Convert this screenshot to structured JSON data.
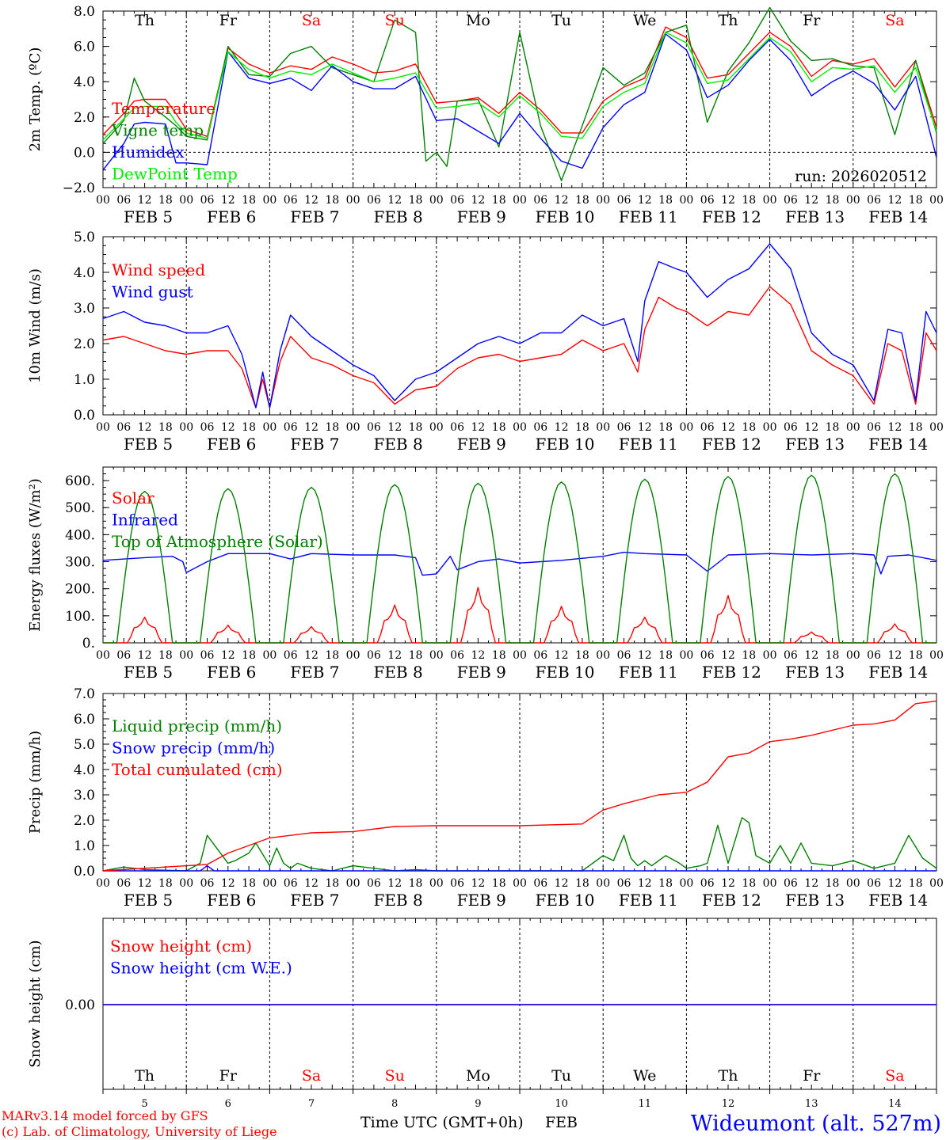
{
  "meta": {
    "run_label": "run: 2026020512",
    "credit_line1": "MARv3.14 model forced by GFS",
    "credit_line2": "(c) Lab. of Climatology, University of Liege",
    "xlabel": "Time UTC (GMT+0h)",
    "month_label": "FEB",
    "station": "Wideumont (alt. 527m)",
    "colors": {
      "red": "#ff0000",
      "green": "#008000",
      "blue": "#0000ff",
      "lime": "#00ee00",
      "grid": "#000000",
      "weekend": "#ff0000"
    }
  },
  "time_axis": {
    "days": [
      {
        "abbr": "Th",
        "date": "FEB  5",
        "num": "5",
        "weekend": false
      },
      {
        "abbr": "Fr",
        "date": "FEB  6",
        "num": "6",
        "weekend": false
      },
      {
        "abbr": "Sa",
        "date": "FEB  7",
        "num": "7",
        "weekend": true
      },
      {
        "abbr": "Su",
        "date": "FEB  8",
        "num": "8",
        "weekend": true
      },
      {
        "abbr": "Mo",
        "date": "FEB  9",
        "num": "9",
        "weekend": false
      },
      {
        "abbr": "Tu",
        "date": "FEB 10",
        "num": "10",
        "weekend": false
      },
      {
        "abbr": "We",
        "date": "FEB 11",
        "num": "11",
        "weekend": false
      },
      {
        "abbr": "Th",
        "date": "FEB 12",
        "num": "12",
        "weekend": false
      },
      {
        "abbr": "Fr",
        "date": "FEB 13",
        "num": "13",
        "weekend": false
      },
      {
        "abbr": "Sa",
        "date": "FEB 14",
        "num": "14",
        "weekend": true
      }
    ],
    "hour_ticks": [
      "00",
      "06",
      "12",
      "18"
    ],
    "end_tick": "00"
  },
  "chart_data": [
    {
      "id": "temp",
      "type": "line",
      "ylabel": "2m Temp. (ºC)",
      "ylim": [
        -2,
        8
      ],
      "yticks": [
        -2,
        0,
        2,
        4,
        6,
        8
      ],
      "ytick_labels": [
        "−2.0",
        "0.0",
        "2.0",
        "4.0",
        "6.0",
        "8.0"
      ],
      "zero_line": 0,
      "x_unit": "hours since Feb 5 00 UTC",
      "series": [
        {
          "name": "Temperature",
          "color": "#ff0000",
          "x": [
            0,
            6,
            9,
            12,
            18,
            21,
            24,
            30,
            36,
            42,
            48,
            54,
            60,
            66,
            72,
            78,
            84,
            90,
            96,
            102,
            108,
            114,
            120,
            126,
            132,
            138,
            144,
            150,
            156,
            162,
            168,
            174,
            180,
            186,
            192,
            198,
            204,
            210,
            216,
            222,
            228,
            234,
            240
          ],
          "values": [
            1.0,
            2.2,
            2.9,
            3.0,
            3.0,
            2.2,
            1.3,
            0.9,
            5.9,
            5.0,
            4.5,
            4.9,
            4.7,
            5.4,
            5.0,
            4.5,
            4.6,
            5.0,
            2.8,
            2.9,
            3.1,
            2.2,
            3.4,
            2.4,
            1.1,
            1.1,
            2.9,
            3.7,
            4.2,
            7.1,
            6.5,
            4.2,
            4.4,
            5.6,
            6.8,
            6.0,
            4.3,
            5.2,
            5.0,
            5.3,
            3.7,
            5.2,
            1.4
          ]
        },
        {
          "name": "Vigne temp",
          "color": "#008000",
          "x": [
            0,
            6,
            9,
            12,
            18,
            21,
            24,
            30,
            36,
            42,
            48,
            54,
            60,
            66,
            72,
            78,
            84,
            90,
            93,
            96,
            99,
            102,
            108,
            114,
            120,
            126,
            132,
            138,
            144,
            150,
            156,
            162,
            168,
            174,
            180,
            186,
            192,
            198,
            204,
            210,
            216,
            222,
            228,
            234,
            240
          ],
          "values": [
            0.5,
            1.8,
            4.2,
            2.9,
            2.0,
            1.5,
            0.9,
            0.7,
            6.0,
            4.4,
            4.3,
            5.6,
            6.0,
            4.8,
            4.4,
            4.0,
            7.5,
            6.8,
            -0.5,
            0.0,
            -0.8,
            2.9,
            3.0,
            0.3,
            6.8,
            1.5,
            -1.6,
            1.5,
            4.8,
            3.8,
            4.5,
            6.8,
            7.2,
            1.7,
            4.6,
            6.2,
            8.2,
            6.3,
            5.2,
            5.3,
            4.9,
            4.8,
            1.0,
            5.2,
            1.1
          ]
        },
        {
          "name": "Humidex",
          "color": "#0000ff",
          "x": [
            0,
            6,
            9,
            12,
            18,
            21,
            24,
            30,
            36,
            42,
            48,
            54,
            60,
            66,
            72,
            78,
            84,
            90,
            96,
            102,
            108,
            114,
            120,
            126,
            132,
            138,
            144,
            150,
            156,
            162,
            168,
            174,
            180,
            186,
            192,
            198,
            204,
            210,
            216,
            222,
            228,
            234,
            240
          ],
          "values": [
            -1.0,
            0.5,
            1.6,
            1.7,
            1.6,
            -0.6,
            -0.6,
            -0.7,
            5.7,
            4.2,
            3.9,
            4.2,
            3.5,
            4.9,
            4.0,
            3.6,
            3.6,
            4.3,
            1.8,
            1.9,
            1.2,
            0.5,
            2.2,
            0.8,
            -0.5,
            -0.9,
            1.4,
            2.7,
            3.4,
            6.7,
            5.8,
            3.1,
            3.8,
            5.2,
            6.4,
            5.2,
            3.2,
            4.0,
            4.6,
            3.9,
            2.4,
            4.3,
            -0.3
          ]
        },
        {
          "name": "DewPoint Temp",
          "color": "#00ee00",
          "x": [
            0,
            6,
            9,
            12,
            18,
            21,
            24,
            30,
            36,
            42,
            48,
            54,
            60,
            66,
            72,
            78,
            84,
            90,
            96,
            102,
            108,
            114,
            120,
            126,
            132,
            138,
            144,
            150,
            156,
            162,
            168,
            174,
            180,
            186,
            192,
            198,
            204,
            210,
            216,
            222,
            228,
            234,
            240
          ],
          "values": [
            0.7,
            1.9,
            2.5,
            2.6,
            2.6,
            1.7,
            1.1,
            0.8,
            5.7,
            4.7,
            4.2,
            4.6,
            4.4,
            5.0,
            4.5,
            4.0,
            4.2,
            4.5,
            2.5,
            2.6,
            2.8,
            2.0,
            3.2,
            2.2,
            0.9,
            0.8,
            2.6,
            3.4,
            3.9,
            6.8,
            6.2,
            3.9,
            4.1,
            5.3,
            6.5,
            5.7,
            4.0,
            4.8,
            4.7,
            4.9,
            3.4,
            4.8,
            1.2
          ]
        }
      ]
    },
    {
      "id": "wind",
      "type": "line",
      "ylabel": "10m Wind (m/s)",
      "ylim": [
        0,
        5
      ],
      "yticks": [
        0,
        1,
        2,
        3,
        4,
        5
      ],
      "ytick_labels": [
        "0.0",
        "1.0",
        "2.0",
        "3.0",
        "4.0",
        "5.0"
      ],
      "x_unit": "hours since Feb 5 00 UTC",
      "series": [
        {
          "name": "Wind speed",
          "color": "#ff0000",
          "x": [
            0,
            6,
            12,
            18,
            24,
            30,
            36,
            40,
            44,
            46,
            48,
            51,
            54,
            60,
            66,
            72,
            78,
            84,
            90,
            96,
            102,
            108,
            114,
            120,
            126,
            132,
            138,
            144,
            150,
            154,
            156,
            160,
            165,
            168,
            174,
            180,
            186,
            192,
            198,
            204,
            210,
            216,
            222,
            226,
            230,
            234,
            237,
            240
          ],
          "values": [
            2.1,
            2.2,
            2.0,
            1.8,
            1.7,
            1.8,
            1.8,
            1.3,
            0.2,
            1.0,
            0.2,
            1.5,
            2.2,
            1.6,
            1.4,
            1.1,
            0.9,
            0.3,
            0.7,
            0.8,
            1.3,
            1.6,
            1.7,
            1.5,
            1.6,
            1.7,
            2.1,
            1.8,
            2.0,
            1.2,
            2.4,
            3.3,
            3.0,
            2.9,
            2.5,
            2.9,
            2.8,
            3.6,
            3.1,
            1.8,
            1.4,
            1.1,
            0.3,
            2.0,
            1.8,
            0.3,
            2.3,
            1.8
          ]
        },
        {
          "name": "Wind gust",
          "color": "#0000ff",
          "x": [
            0,
            6,
            12,
            18,
            24,
            30,
            36,
            40,
            44,
            46,
            48,
            51,
            54,
            60,
            66,
            72,
            78,
            84,
            90,
            96,
            102,
            108,
            114,
            120,
            126,
            132,
            138,
            144,
            150,
            154,
            156,
            160,
            165,
            168,
            174,
            180,
            186,
            192,
            198,
            204,
            210,
            216,
            222,
            226,
            230,
            234,
            237,
            240
          ],
          "values": [
            2.7,
            2.9,
            2.6,
            2.5,
            2.3,
            2.3,
            2.5,
            1.7,
            0.2,
            1.2,
            0.2,
            1.8,
            2.8,
            2.2,
            1.8,
            1.4,
            1.1,
            0.4,
            1.0,
            1.2,
            1.6,
            2.0,
            2.2,
            2.0,
            2.3,
            2.3,
            2.8,
            2.5,
            2.7,
            1.5,
            3.2,
            4.3,
            4.1,
            4.0,
            3.3,
            3.8,
            4.1,
            4.8,
            4.1,
            2.3,
            1.7,
            1.4,
            0.4,
            2.4,
            2.3,
            0.4,
            2.9,
            2.3
          ]
        }
      ]
    },
    {
      "id": "energy",
      "type": "line",
      "ylabel": "Energy fluxes (W/m²)",
      "ylim": [
        0,
        650
      ],
      "yticks": [
        0,
        100,
        200,
        300,
        400,
        500,
        600
      ],
      "ytick_labels": [
        "0.",
        "100.",
        "200.",
        "300.",
        "400.",
        "500.",
        "600."
      ],
      "x_unit": "hours since Feb 5 00 UTC",
      "series": [
        {
          "name": "Solar",
          "color": "#ff0000",
          "daily_peak": [
            95,
            65,
            60,
            140,
            205,
            135,
            95,
            175,
            40,
            70
          ]
        },
        {
          "name": "Infrared",
          "color": "#0000ff",
          "x": [
            0,
            12,
            20,
            23,
            24,
            30,
            36,
            48,
            54,
            60,
            72,
            84,
            90,
            92,
            96,
            100,
            102,
            108,
            114,
            120,
            126,
            132,
            144,
            150,
            156,
            168,
            174,
            180,
            192,
            204,
            216,
            222,
            224,
            226,
            232,
            240
          ],
          "values": [
            305,
            315,
            320,
            300,
            260,
            300,
            330,
            330,
            310,
            330,
            325,
            325,
            315,
            250,
            255,
            320,
            270,
            300,
            310,
            295,
            300,
            305,
            320,
            335,
            330,
            325,
            265,
            325,
            330,
            325,
            330,
            325,
            255,
            320,
            325,
            305
          ]
        },
        {
          "name": "Top of Atmosphere (Solar)",
          "color": "#008000",
          "daily_peak": [
            560,
            570,
            575,
            585,
            590,
            595,
            605,
            615,
            620,
            625
          ]
        }
      ]
    },
    {
      "id": "precip",
      "type": "line",
      "ylabel": "Precip (mm/h)",
      "ylim": [
        0,
        7
      ],
      "yticks": [
        0,
        1,
        2,
        3,
        4,
        5,
        6,
        7
      ],
      "ytick_labels": [
        "0.0",
        "1.0",
        "2.0",
        "3.0",
        "4.0",
        "5.0",
        "6.0",
        "7.0"
      ],
      "x_unit": "hours since Feb 5 00 UTC",
      "series": [
        {
          "name": "Liquid precip (mm/h)",
          "color": "#008000",
          "x": [
            0,
            6,
            12,
            24,
            28,
            30,
            36,
            38,
            42,
            44,
            48,
            50,
            52,
            54,
            56,
            60,
            66,
            72,
            78,
            84,
            90,
            96,
            120,
            138,
            144,
            147,
            150,
            152,
            154,
            156,
            158,
            162,
            166,
            168,
            172,
            174,
            177,
            180,
            182,
            184,
            186,
            188,
            192,
            195,
            198,
            201,
            204,
            210,
            216,
            222,
            228,
            232,
            236,
            240
          ],
          "values": [
            0.0,
            0.15,
            0.05,
            0.0,
            0.3,
            1.4,
            0.3,
            0.4,
            0.7,
            1.1,
            0.2,
            0.9,
            0.3,
            0.1,
            0.3,
            0.1,
            0.0,
            0.2,
            0.1,
            0.0,
            0.05,
            0.0,
            0.0,
            0.0,
            0.6,
            0.4,
            1.4,
            0.5,
            0.2,
            0.4,
            0.2,
            0.6,
            0.3,
            0.1,
            0.2,
            0.3,
            1.8,
            0.3,
            1.2,
            2.1,
            1.9,
            0.6,
            0.3,
            1.0,
            0.3,
            1.1,
            0.3,
            0.2,
            0.4,
            0.1,
            0.3,
            1.4,
            0.5,
            0.1
          ]
        },
        {
          "name": "Snow precip (mm/h)",
          "color": "#0000ff",
          "x": [
            0,
            28,
            30,
            32,
            44,
            48,
            120,
            240
          ],
          "values": [
            0.0,
            0.0,
            0.2,
            0.0,
            0.0,
            0.0,
            0.0,
            0.0
          ]
        },
        {
          "name": "Total cumulated (cm)",
          "color": "#ff0000",
          "x": [
            0,
            24,
            30,
            36,
            42,
            48,
            60,
            72,
            84,
            96,
            120,
            138,
            144,
            150,
            160,
            168,
            174,
            180,
            186,
            192,
            198,
            204,
            216,
            222,
            228,
            234,
            240
          ],
          "values": [
            0.0,
            0.2,
            0.25,
            0.7,
            1.0,
            1.3,
            1.5,
            1.55,
            1.75,
            1.78,
            1.78,
            1.85,
            2.4,
            2.65,
            3.0,
            3.1,
            3.5,
            4.5,
            4.65,
            5.1,
            5.2,
            5.35,
            5.75,
            5.8,
            5.95,
            6.6,
            6.7
          ]
        }
      ]
    },
    {
      "id": "snow",
      "type": "line",
      "ylabel": "Snow height (cm)",
      "yticks": [
        0
      ],
      "ytick_labels": [
        "0.00"
      ],
      "x_unit": "hours since Feb 5 00 UTC",
      "series": [
        {
          "name": "Snow height (cm)",
          "color": "#ff0000",
          "x": [
            0,
            240
          ],
          "values": [
            0,
            0
          ]
        },
        {
          "name": "Snow height (cm W.E.)",
          "color": "#0000ff",
          "x": [
            0,
            240
          ],
          "values": [
            0,
            0
          ]
        }
      ]
    }
  ]
}
